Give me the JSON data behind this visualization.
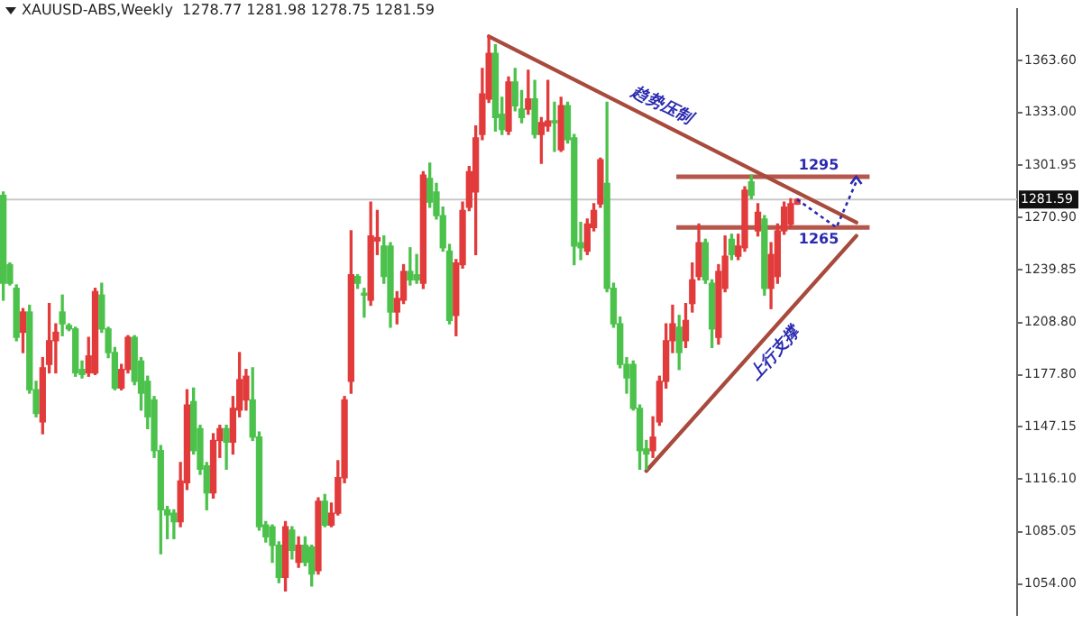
{
  "chart_data": {
    "type": "candlestick",
    "title": "XAUUSD-ABS,Weekly  1278.77 1281.98 1278.75 1281.59",
    "categories": [
      null,
      null,
      null,
      null,
      null,
      null,
      null,
      null,
      null,
      null,
      null,
      null,
      null,
      null,
      null,
      null,
      null,
      null,
      null,
      null,
      null,
      null,
      null,
      null,
      null,
      null,
      null,
      null,
      null,
      null,
      null,
      null,
      null,
      null,
      null,
      null,
      null,
      null,
      null,
      null,
      null,
      null,
      null,
      null,
      null,
      null,
      null,
      null,
      null,
      null,
      null,
      null,
      null,
      null,
      null,
      null,
      null,
      null,
      null,
      null,
      null,
      null,
      null,
      null,
      null,
      null,
      null,
      null,
      null,
      null,
      null,
      null,
      null,
      null,
      null,
      null,
      null,
      null,
      null,
      null,
      null,
      null,
      null,
      null,
      null,
      null,
      null,
      null,
      null,
      null,
      null,
      null,
      null,
      null,
      null,
      null,
      null,
      null,
      null,
      null,
      null,
      null,
      null,
      null,
      null,
      null,
      null,
      null,
      null,
      null,
      null,
      null,
      null,
      null,
      null,
      null,
      null,
      null,
      null,
      null,
      null,
      null,
      null,
      null,
      null,
      null,
      null,
      null,
      null,
      null,
      null,
      null,
      null,
      null,
      null,
      null,
      null,
      null,
      null,
      null,
      null,
      null,
      null,
      null,
      null,
      null,
      null,
      null,
      null,
      null,
      null,
      null,
      null,
      null,
      null
    ],
    "ohlc": [
      [
        1284,
        1286,
        1222,
        1232
      ],
      [
        1243,
        1244,
        1231,
        1232
      ],
      [
        1229,
        1231,
        1198,
        1200
      ],
      [
        1203,
        1217,
        1191,
        1215
      ],
      [
        1215,
        1219,
        1167,
        1169
      ],
      [
        1169,
        1174,
        1153,
        1155
      ],
      [
        1150,
        1188,
        1143,
        1182
      ],
      [
        1184,
        1220,
        1179,
        1198
      ],
      [
        1198,
        1208,
        1179,
        1203
      ],
      [
        1215,
        1225,
        1201,
        1208
      ],
      [
        1207,
        1208,
        1204,
        1205
      ],
      [
        1205,
        1206,
        1177,
        1179
      ],
      [
        1181,
        1186,
        1176,
        1178
      ],
      [
        1179,
        1200,
        1177,
        1189
      ],
      [
        1179,
        1229,
        1178,
        1227
      ],
      [
        1225,
        1232,
        1203,
        1205
      ],
      [
        1205,
        1206,
        1188,
        1191
      ],
      [
        1191,
        1194,
        1169,
        1170
      ],
      [
        1170,
        1184,
        1169,
        1181
      ],
      [
        1181,
        1201,
        1179,
        1200
      ],
      [
        1200,
        1201,
        1172,
        1174
      ],
      [
        1186,
        1188,
        1157,
        1167
      ],
      [
        1174,
        1177,
        1146,
        1153
      ],
      [
        1163,
        1165,
        1129,
        1133
      ],
      [
        1133,
        1136,
        1072,
        1098
      ],
      [
        1098,
        1100,
        1081,
        1095
      ],
      [
        1096,
        1098,
        1081,
        1091
      ],
      [
        1091,
        1126,
        1088,
        1115
      ],
      [
        1114,
        1169,
        1110,
        1160
      ],
      [
        1162,
        1170,
        1131,
        1133
      ],
      [
        1146,
        1148,
        1119,
        1122
      ],
      [
        1124,
        1126,
        1098,
        1108
      ],
      [
        1108,
        1143,
        1105,
        1139
      ],
      [
        1139,
        1148,
        1129,
        1146
      ],
      [
        1146,
        1148,
        1122,
        1138
      ],
      [
        1138,
        1165,
        1131,
        1158
      ],
      [
        1157,
        1191,
        1153,
        1175
      ],
      [
        1163,
        1181,
        1157,
        1177
      ],
      [
        1163,
        1182,
        1139,
        1141
      ],
      [
        1141,
        1144,
        1086,
        1088
      ],
      [
        1089,
        1091,
        1079,
        1082
      ],
      [
        1088,
        1089,
        1067,
        1077
      ],
      [
        1077,
        1079,
        1055,
        1058
      ],
      [
        1058,
        1091,
        1050,
        1088
      ],
      [
        1086,
        1088,
        1069,
        1074
      ],
      [
        1067,
        1082,
        1064,
        1077
      ],
      [
        1077,
        1082,
        1065,
        1067
      ],
      [
        1076,
        1077,
        1053,
        1060
      ],
      [
        1062,
        1105,
        1060,
        1103
      ],
      [
        1103,
        1107,
        1088,
        1089
      ],
      [
        1089,
        1102,
        1088,
        1096
      ],
      [
        1096,
        1127,
        1095,
        1117
      ],
      [
        1117,
        1165,
        1114,
        1163
      ],
      [
        1174,
        1263,
        1167,
        1237
      ],
      [
        1236,
        1237,
        1229,
        1232
      ],
      [
        1226,
        1229,
        1212,
        1225
      ],
      [
        1222,
        1280,
        1219,
        1260
      ],
      [
        1257,
        1275,
        1249,
        1259
      ],
      [
        1254,
        1260,
        1232,
        1236
      ],
      [
        1254,
        1256,
        1206,
        1215
      ],
      [
        1215,
        1227,
        1208,
        1223
      ],
      [
        1222,
        1243,
        1220,
        1239
      ],
      [
        1239,
        1253,
        1231,
        1234
      ],
      [
        1237,
        1249,
        1232,
        1234
      ],
      [
        1232,
        1298,
        1229,
        1296
      ],
      [
        1294,
        1303,
        1277,
        1280
      ],
      [
        1286,
        1291,
        1270,
        1272
      ],
      [
        1272,
        1277,
        1251,
        1253
      ],
      [
        1251,
        1255,
        1208,
        1210
      ],
      [
        1213,
        1246,
        1201,
        1244
      ],
      [
        1243,
        1280,
        1241,
        1275
      ],
      [
        1277,
        1301,
        1275,
        1298
      ],
      [
        1286,
        1325,
        1249,
        1318
      ],
      [
        1320,
        1359,
        1317,
        1344
      ],
      [
        1341,
        1378,
        1339,
        1368
      ],
      [
        1368,
        1373,
        1322,
        1330
      ],
      [
        1332,
        1342,
        1320,
        1323
      ],
      [
        1322,
        1354,
        1320,
        1351
      ],
      [
        1351,
        1359,
        1334,
        1337
      ],
      [
        1335,
        1346,
        1327,
        1330
      ],
      [
        1335,
        1358,
        1332,
        1341
      ],
      [
        1341,
        1352,
        1318,
        1320
      ],
      [
        1320,
        1330,
        1303,
        1327
      ],
      [
        1325,
        1352,
        1322,
        1328
      ],
      [
        1328,
        1339,
        1310,
        1327
      ],
      [
        1311,
        1342,
        1310,
        1337
      ],
      [
        1337,
        1339,
        1315,
        1317
      ],
      [
        1318,
        1320,
        1243,
        1254
      ],
      [
        1256,
        1268,
        1246,
        1253
      ],
      [
        1251,
        1270,
        1249,
        1267
      ],
      [
        1265,
        1279,
        1263,
        1275
      ],
      [
        1279,
        1306,
        1277,
        1305
      ],
      [
        1291,
        1339,
        1227,
        1229
      ],
      [
        1229,
        1232,
        1206,
        1208
      ],
      [
        1208,
        1212,
        1182,
        1184
      ],
      [
        1184,
        1188,
        1167,
        1176
      ],
      [
        1184,
        1186,
        1157,
        1158
      ],
      [
        1158,
        1160,
        1122,
        1133
      ],
      [
        1134,
        1139,
        1122,
        1131
      ],
      [
        1133,
        1153,
        1129,
        1141
      ],
      [
        1150,
        1177,
        1148,
        1174
      ],
      [
        1174,
        1208,
        1170,
        1198
      ],
      [
        1198,
        1219,
        1191,
        1208
      ],
      [
        1206,
        1213,
        1181,
        1191
      ],
      [
        1198,
        1220,
        1194,
        1210
      ],
      [
        1220,
        1244,
        1215,
        1234
      ],
      [
        1236,
        1267,
        1234,
        1256
      ],
      [
        1256,
        1258,
        1232,
        1234
      ],
      [
        1232,
        1234,
        1194,
        1205
      ],
      [
        1200,
        1243,
        1196,
        1239
      ],
      [
        1229,
        1260,
        1227,
        1248
      ],
      [
        1258,
        1261,
        1246,
        1249
      ],
      [
        1248,
        1261,
        1246,
        1254
      ],
      [
        1253,
        1289,
        1251,
        1287
      ],
      [
        1292,
        1296,
        1282,
        1284
      ],
      [
        1263,
        1279,
        1260,
        1274
      ],
      [
        1270,
        1272,
        1225,
        1229
      ],
      [
        1229,
        1256,
        1217,
        1249
      ],
      [
        1236,
        1267,
        1232,
        1263
      ],
      [
        1263,
        1280,
        1261,
        1277
      ],
      [
        1267,
        1282,
        1265,
        1279
      ],
      [
        1278.77,
        1281.98,
        1278.75,
        1281.59
      ],
      null,
      null,
      null,
      null,
      null,
      null,
      null,
      null,
      null,
      null,
      null,
      null,
      null,
      null,
      null,
      null,
      null,
      null,
      null,
      null,
      null,
      null,
      null,
      null,
      null,
      null,
      null,
      null,
      null,
      null,
      null,
      null,
      null
    ],
    "colors": [
      "#4cc24c",
      "#4cc24c",
      "#4cc24c",
      "#e23b3b",
      "#4cc24c",
      "#4cc24c",
      "#e23b3b",
      "#e23b3b",
      "#e23b3b",
      "#4cc24c",
      "#4cc24c",
      "#4cc24c",
      "#4cc24c",
      "#e23b3b",
      "#e23b3b",
      "#4cc24c",
      "#4cc24c",
      "#4cc24c",
      "#e23b3b",
      "#e23b3b",
      "#4cc24c",
      "#4cc24c",
      "#4cc24c",
      "#4cc24c",
      "#4cc24c",
      "#4cc24c",
      "#4cc24c",
      "#e23b3b",
      "#e23b3b",
      "#4cc24c",
      "#4cc24c",
      "#4cc24c",
      "#e23b3b",
      "#e23b3b",
      "#4cc24c",
      "#e23b3b",
      "#e23b3b",
      "#e23b3b",
      "#4cc24c",
      "#4cc24c",
      "#4cc24c",
      "#4cc24c",
      "#4cc24c",
      "#e23b3b",
      "#4cc24c",
      "#e23b3b",
      "#4cc24c",
      "#4cc24c",
      "#e23b3b",
      "#4cc24c",
      "#e23b3b",
      "#e23b3b",
      "#e23b3b",
      "#e23b3b",
      "#4cc24c",
      "#4cc24c",
      "#e23b3b",
      "#e23b3b",
      "#4cc24c",
      "#4cc24c",
      "#e23b3b",
      "#e23b3b",
      "#4cc24c",
      "#4cc24c",
      "#e23b3b",
      "#4cc24c",
      "#4cc24c",
      "#4cc24c",
      "#4cc24c",
      "#e23b3b",
      "#e23b3b",
      "#e23b3b",
      "#e23b3b",
      "#e23b3b",
      "#e23b3b",
      "#4cc24c",
      "#4cc24c",
      "#e23b3b",
      "#4cc24c",
      "#4cc24c",
      "#e23b3b",
      "#4cc24c",
      "#e23b3b",
      "#e23b3b",
      "#4cc24c",
      "#e23b3b",
      "#4cc24c",
      "#4cc24c",
      "#4cc24c",
      "#e23b3b",
      "#e23b3b",
      "#e23b3b",
      "#4cc24c",
      "#4cc24c",
      "#4cc24c",
      "#4cc24c",
      "#4cc24c",
      "#4cc24c",
      "#4cc24c",
      "#e23b3b",
      "#e23b3b",
      "#e23b3b",
      "#e23b3b",
      "#4cc24c",
      "#e23b3b",
      "#e23b3b",
      "#e23b3b",
      "#4cc24c",
      "#4cc24c",
      "#e23b3b",
      "#e23b3b",
      "#4cc24c",
      "#e23b3b",
      "#e23b3b",
      "#4cc24c",
      "#e23b3b",
      "#4cc24c",
      "#e23b3b",
      "#e23b3b",
      "#e23b3b",
      "#e23b3b",
      "#e23b3b",
      null,
      null,
      null,
      null,
      null,
      null,
      null,
      null,
      null,
      null,
      null,
      null,
      null,
      null,
      null,
      null,
      null,
      null,
      null,
      null,
      null,
      null,
      null,
      null,
      null,
      null,
      null,
      null,
      null,
      null,
      null,
      null,
      null
    ],
    "series": [
      {
        "type": "line",
        "color": "#a84a3c",
        "values": [
          null,
          null,
          null,
          null,
          null,
          null,
          null,
          null,
          null,
          null,
          null,
          null,
          null,
          null,
          null,
          null,
          null,
          null,
          null,
          null,
          null,
          null,
          null,
          null,
          null,
          null,
          null,
          null,
          null,
          null,
          null,
          null,
          null,
          null,
          null,
          null,
          null,
          null,
          null,
          null,
          null,
          null,
          null,
          null,
          null,
          null,
          null,
          null,
          null,
          null,
          null,
          null,
          null,
          null,
          null,
          null,
          null,
          null,
          null,
          null,
          null,
          null,
          null,
          null,
          null,
          null,
          null,
          null,
          null,
          null,
          null,
          null,
          null,
          null,
          1378,
          null,
          null,
          null,
          null,
          null,
          null,
          null,
          null,
          null,
          null,
          null,
          null,
          null,
          null,
          null,
          null,
          null,
          null,
          null,
          null,
          null,
          null,
          null,
          null,
          null,
          null,
          null,
          null,
          null,
          null,
          null,
          null,
          null,
          null,
          null,
          null,
          null,
          null,
          null,
          null,
          null,
          null,
          null,
          null,
          null,
          null,
          null,
          null,
          null,
          null,
          null,
          null,
          null,
          null,
          null,
          1268,
          null,
          null,
          null,
          null,
          null,
          null,
          null,
          null,
          null,
          null,
          null,
          null,
          null,
          null,
          null,
          null,
          null,
          null,
          null,
          null,
          null,
          null,
          null,
          null
        ]
      },
      {
        "type": "line",
        "color": "#a84a3c",
        "values": [
          null,
          null,
          null,
          null,
          null,
          null,
          null,
          null,
          null,
          null,
          null,
          null,
          null,
          null,
          null,
          null,
          null,
          null,
          null,
          null,
          null,
          null,
          null,
          null,
          null,
          null,
          null,
          null,
          null,
          null,
          null,
          null,
          null,
          null,
          null,
          null,
          null,
          null,
          null,
          null,
          null,
          null,
          null,
          null,
          null,
          null,
          null,
          null,
          null,
          null,
          null,
          null,
          null,
          null,
          null,
          null,
          null,
          null,
          null,
          null,
          null,
          null,
          null,
          null,
          null,
          null,
          null,
          null,
          null,
          null,
          null,
          null,
          null,
          null,
          null,
          null,
          null,
          null,
          null,
          null,
          null,
          null,
          null,
          null,
          null,
          null,
          null,
          null,
          null,
          null,
          null,
          null,
          null,
          null,
          null,
          null,
          null,
          null,
          1121,
          null,
          null,
          null,
          null,
          null,
          null,
          null,
          null,
          null,
          null,
          null,
          null,
          null,
          null,
          null,
          null,
          null,
          null,
          null,
          null,
          null,
          null,
          null,
          null,
          null,
          null,
          null,
          null,
          null,
          null,
          null,
          1260,
          null,
          null,
          null,
          null,
          null,
          null,
          null,
          null,
          null,
          null,
          null,
          null,
          null,
          null,
          null,
          null,
          null,
          null,
          null,
          null,
          null,
          null,
          null,
          null
        ]
      }
    ],
    "ylim": [
      1036,
      1394
    ],
    "yticks": [
      {
        "value": 1363.6,
        "label": "1363.60"
      },
      {
        "value": 1333,
        "label": "1333.00"
      },
      {
        "value": 1301.95,
        "label": "1301.95"
      },
      {
        "value": 1270.9,
        "label": "1270.90"
      },
      {
        "value": 1239.85,
        "label": "1239.85"
      },
      {
        "value": 1208.8,
        "label": "1208.80"
      },
      {
        "value": 1177.8,
        "label": "1177.80"
      },
      {
        "value": 1147.15,
        "label": "1147.15"
      },
      {
        "value": 1116.1,
        "label": "1116.10"
      },
      {
        "value": 1085.05,
        "label": "1085.05"
      },
      {
        "value": 1054,
        "label": "1054.00"
      }
    ],
    "ref_lines": [
      {
        "axis": "y",
        "value": 1295,
        "label": "1295",
        "color": "#b5574a"
      },
      {
        "axis": "y",
        "value": 1265,
        "label": "1265",
        "color": "#b5574a"
      },
      {
        "axis": "y",
        "value": 1281.59,
        "label": "1281.59",
        "color": "#c8c8c8"
      }
    ],
    "annotations": [
      "趋势压制",
      "上行支撑"
    ],
    "grid": false,
    "legend": false,
    "tick_labels": "y"
  }
}
